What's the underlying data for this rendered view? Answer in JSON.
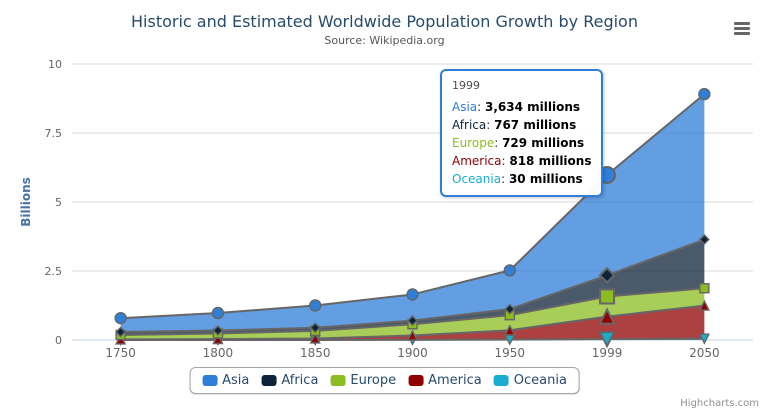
{
  "header": {
    "title": "Historic and Estimated Worldwide Population Growth by Region",
    "subtitle": "Source: Wikipedia.org"
  },
  "icons": {
    "export_menu": "hamburger-icon"
  },
  "chart_data": {
    "type": "area",
    "stacking": "normal",
    "title": "Historic and Estimated Worldwide Population Growth by Region",
    "subtitle": "Source: Wikipedia.org",
    "xlabel": "",
    "ylabel": "Billions",
    "ylim": [
      0,
      10
    ],
    "yticks": [
      0,
      2.5,
      5,
      7.5,
      10
    ],
    "unit": "millions",
    "grid": "horizontal",
    "legend_position": "bottom",
    "categories": [
      "1750",
      "1800",
      "1850",
      "1900",
      "1950",
      "1999",
      "2050"
    ],
    "series": [
      {
        "name": "Asia",
        "color": "#2f7ed8",
        "marker": "circle",
        "values_millions": [
          502,
          635,
          809,
          947,
          1402,
          3634,
          5268
        ]
      },
      {
        "name": "Africa",
        "color": "#0d233a",
        "marker": "diamond",
        "values_millions": [
          106,
          107,
          111,
          133,
          221,
          767,
          1766
        ]
      },
      {
        "name": "Europe",
        "color": "#8bbc21",
        "marker": "square",
        "values_millions": [
          163,
          203,
          276,
          408,
          547,
          729,
          628
        ]
      },
      {
        "name": "America",
        "color": "#910000",
        "marker": "triangle",
        "values_millions": [
          18,
          31,
          54,
          156,
          339,
          818,
          1201
        ]
      },
      {
        "name": "Oceania",
        "color": "#1aadce",
        "marker": "triangle-down",
        "values_millions": [
          2,
          2,
          2,
          6,
          13,
          30,
          46
        ]
      }
    ],
    "stack_bottom_to_top": [
      "Oceania",
      "America",
      "Europe",
      "Africa",
      "Asia"
    ],
    "hover_category_index": 5,
    "fill_opacity": 0.75,
    "line_color": "#666666",
    "axis_line_color": "#c0d0e0",
    "grid_line_color": "#d8d8d8",
    "label_color": "#666666",
    "y_title_color": "#4572a7"
  },
  "tooltip": {
    "header": "1999",
    "border_color": "#2f7ed8",
    "rows": [
      {
        "name": "Asia",
        "color": "#2f7ed8",
        "value": "3,634 millions"
      },
      {
        "name": "Africa",
        "color": "#0d233a",
        "value": "767 millions"
      },
      {
        "name": "Europe",
        "color": "#8bbc21",
        "value": "729 millions"
      },
      {
        "name": "America",
        "color": "#910000",
        "value": "818 millions"
      },
      {
        "name": "Oceania",
        "color": "#1aadce",
        "value": "30 millions"
      }
    ]
  },
  "legend": {
    "items": [
      "Asia",
      "Africa",
      "Europe",
      "America",
      "Oceania"
    ]
  },
  "credits": {
    "label": "Highcharts.com"
  }
}
